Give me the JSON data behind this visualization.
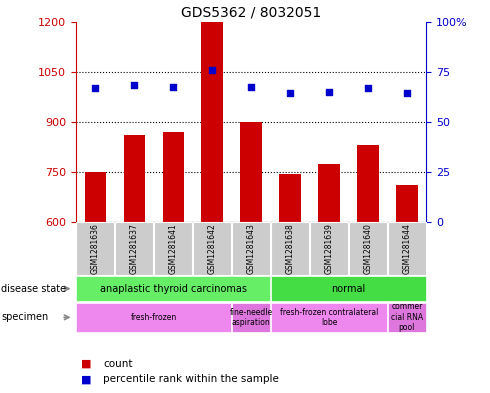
{
  "title": "GDS5362 / 8032051",
  "samples": [
    "GSM1281636",
    "GSM1281637",
    "GSM1281641",
    "GSM1281642",
    "GSM1281643",
    "GSM1281638",
    "GSM1281639",
    "GSM1281640",
    "GSM1281644"
  ],
  "counts": [
    750,
    860,
    870,
    1200,
    900,
    745,
    775,
    830,
    710
  ],
  "percentiles": [
    1000,
    1010,
    1005,
    1055,
    1005,
    985,
    990,
    1000,
    985
  ],
  "ymin": 600,
  "ymax": 1200,
  "yticks": [
    600,
    750,
    900,
    1050,
    1200
  ],
  "bar_color": "#cc0000",
  "dot_color": "#0000cc",
  "disease_state_groups": [
    {
      "label": "anaplastic thyroid carcinomas",
      "start": 0,
      "end": 5,
      "color": "#66ee66"
    },
    {
      "label": "normal",
      "start": 5,
      "end": 9,
      "color": "#44dd44"
    }
  ],
  "specimen_groups": [
    {
      "label": "fresh-frozen",
      "start": 0,
      "end": 4,
      "color": "#ee88ee"
    },
    {
      "label": "fine-needle\naspiration",
      "start": 4,
      "end": 5,
      "color": "#dd77dd"
    },
    {
      "label": "fresh-frozen contralateral\nlobe",
      "start": 5,
      "end": 8,
      "color": "#ee88ee"
    },
    {
      "label": "commer\ncial RNA\npool",
      "start": 8,
      "end": 9,
      "color": "#dd77dd"
    }
  ],
  "legend_count_label": "count",
  "legend_pct_label": "percentile rank within the sample",
  "disease_state_label": "disease state",
  "specimen_label": "specimen",
  "left_axis_color": "#cc0000",
  "right_axis_color": "#0000cc",
  "sample_box_color": "#cccccc",
  "grid_color": "black"
}
